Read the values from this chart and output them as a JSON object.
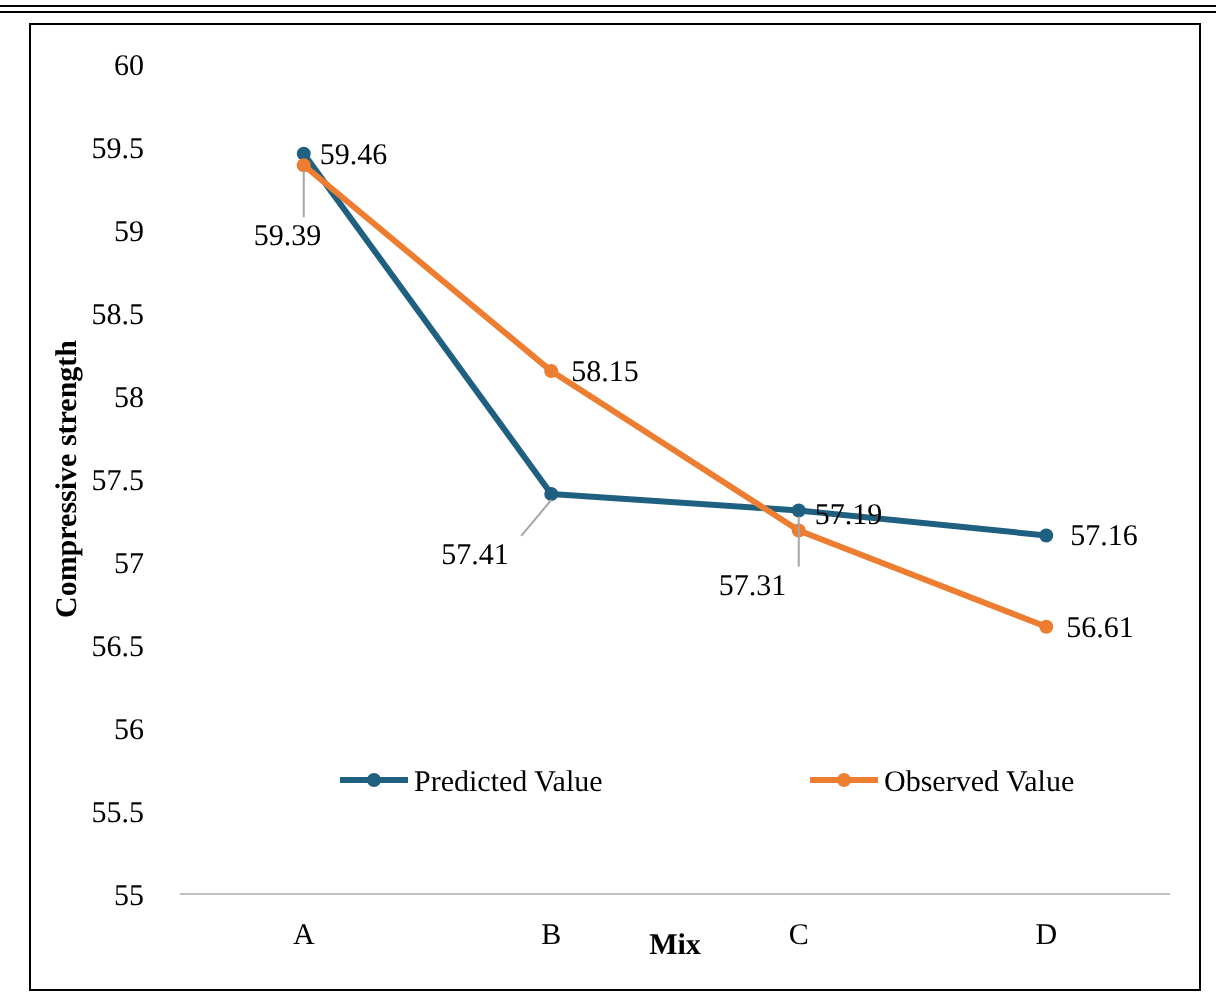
{
  "chart_data": {
    "type": "line",
    "xlabel": "Mix",
    "ylabel": "Compressive strength",
    "categories": [
      "A",
      "B",
      "C",
      "D"
    ],
    "series": [
      {
        "name": "Predicted Value",
        "color": "#1f5f7f",
        "values": [
          59.46,
          57.41,
          57.31,
          57.16
        ]
      },
      {
        "name": "Observed Value",
        "color": "#ed7d31",
        "values": [
          59.39,
          58.15,
          57.19,
          56.61
        ]
      }
    ],
    "ylim": [
      55,
      60
    ],
    "yticks": [
      55,
      55.5,
      56,
      56.5,
      57,
      57.5,
      58,
      58.5,
      59,
      59.5,
      60
    ],
    "grid": false,
    "legend": "bottom",
    "marker": "circle",
    "line_style": "solid",
    "data_labels": true
  }
}
